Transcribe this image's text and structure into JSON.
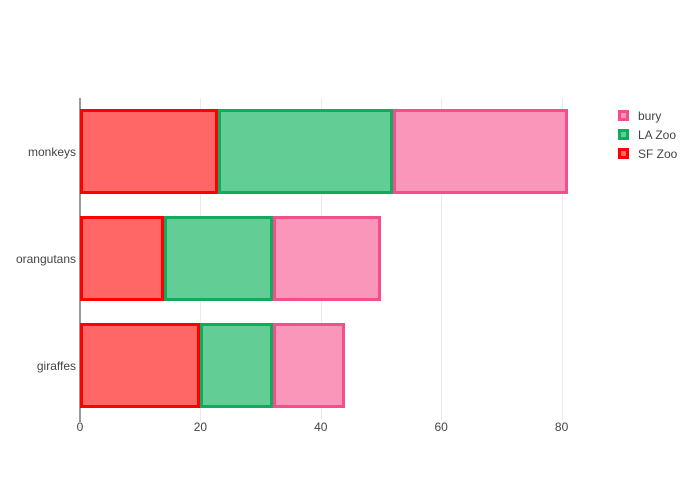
{
  "chart": {
    "background": "#FFFFFF",
    "text_color": "#444444",
    "grid_color": "#EBEBEB",
    "zeroline_color": "#999999"
  },
  "chart_data": {
    "type": "bar",
    "orientation": "horizontal",
    "barmode": "stack",
    "title": "",
    "xlabel": "",
    "ylabel": "",
    "categories": [
      "monkeys",
      "orangutans",
      "giraffes"
    ],
    "series": [
      {
        "name": "SF Zoo",
        "values": [
          23,
          14,
          20
        ],
        "fill_color": "#FF6666",
        "line_color": "#FF0000"
      },
      {
        "name": "LA Zoo",
        "values": [
          29,
          18,
          12
        ],
        "fill_color": "#62CE95",
        "line_color": "#11AB5E"
      },
      {
        "name": "bury",
        "values": [
          29,
          18,
          12
        ],
        "fill_color": "#F996B9",
        "line_color": "#F64E8B"
      }
    ],
    "stack_totals": [
      81,
      50,
      44
    ],
    "xticks": [
      "0",
      "20",
      "40",
      "60",
      "80"
    ],
    "xlim": [
      0,
      85.7
    ],
    "grid": true,
    "legend": {
      "position": "right",
      "entries": [
        "bury",
        "LA Zoo",
        "SF Zoo"
      ]
    }
  }
}
